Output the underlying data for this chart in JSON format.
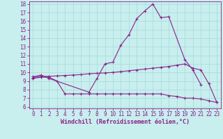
{
  "line1_x": [
    0,
    1,
    2,
    7,
    8,
    9,
    10,
    11,
    12,
    13,
    14,
    15,
    16,
    17,
    19,
    20,
    21
  ],
  "line1_y": [
    9.5,
    9.7,
    9.3,
    7.7,
    9.3,
    11.0,
    11.2,
    13.2,
    14.4,
    16.3,
    17.2,
    18.0,
    16.4,
    16.5,
    11.5,
    10.3,
    8.6
  ],
  "line2_x": [
    0,
    1,
    2,
    3,
    4,
    5,
    6,
    7,
    8,
    9,
    10,
    11,
    12,
    13,
    14,
    15,
    16,
    17,
    18,
    19,
    20,
    21,
    22,
    23
  ],
  "line2_y": [
    9.4,
    9.55,
    9.55,
    9.6,
    9.65,
    9.7,
    9.75,
    9.85,
    9.9,
    9.95,
    10.0,
    10.1,
    10.2,
    10.3,
    10.4,
    10.5,
    10.6,
    10.7,
    10.85,
    11.0,
    10.5,
    10.3,
    8.7,
    6.5
  ],
  "line3_x": [
    0,
    1,
    2,
    3,
    4,
    5,
    6,
    7,
    8,
    9,
    10,
    11,
    12,
    13,
    14,
    15,
    16,
    17,
    18,
    19,
    20,
    21,
    22,
    23
  ],
  "line3_y": [
    9.3,
    9.45,
    9.45,
    9.0,
    7.5,
    7.5,
    7.5,
    7.5,
    7.5,
    7.5,
    7.5,
    7.5,
    7.5,
    7.5,
    7.5,
    7.5,
    7.5,
    7.3,
    7.2,
    7.0,
    7.0,
    6.9,
    6.7,
    6.5
  ],
  "line_color": "#882288",
  "bg_color": "#c8eeee",
  "grid_color": "#aadddd",
  "xlabel": "Windchill (Refroidissement éolien,°C)",
  "ylim": [
    6,
    18
  ],
  "xlim": [
    0,
    23
  ],
  "yticks": [
    6,
    7,
    8,
    9,
    10,
    11,
    12,
    13,
    14,
    15,
    16,
    17,
    18
  ],
  "xticks": [
    0,
    1,
    2,
    3,
    4,
    5,
    6,
    7,
    8,
    9,
    10,
    11,
    12,
    13,
    14,
    15,
    16,
    17,
    18,
    19,
    20,
    21,
    22,
    23
  ],
  "marker": "+",
  "markersize": 3.5,
  "linewidth": 0.8,
  "tick_fontsize": 5.5,
  "xlabel_fontsize": 6.0
}
